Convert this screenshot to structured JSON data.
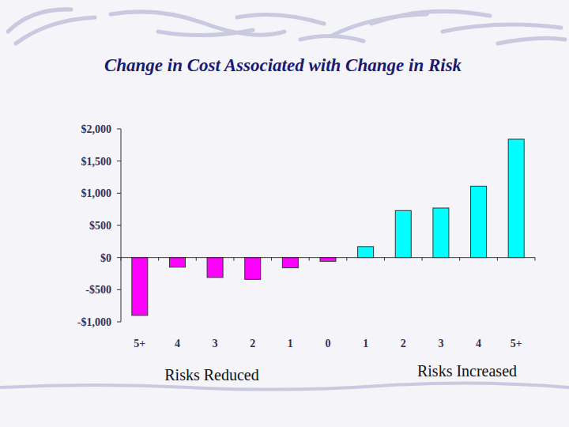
{
  "chart_data": {
    "type": "bar",
    "title": "Change in Cost Associated with Change in Risk",
    "categories": [
      "5+",
      "4",
      "3",
      "2",
      "1",
      "0",
      "1",
      "2",
      "3",
      "4",
      "5+"
    ],
    "values": [
      -900,
      -150,
      -310,
      -340,
      -160,
      -60,
      170,
      730,
      770,
      1110,
      1840
    ],
    "colors": [
      "#ff00ff",
      "#ff00ff",
      "#ff00ff",
      "#ff00ff",
      "#ff00ff",
      "#ff00ff",
      "#00ffff",
      "#00ffff",
      "#00ffff",
      "#00ffff",
      "#00ffff"
    ],
    "ylim": [
      -1000,
      2000
    ],
    "yticks": [
      {
        "value": -1000,
        "label": "-$1,000"
      },
      {
        "value": -500,
        "label": "-$500"
      },
      {
        "value": 0,
        "label": "$0"
      },
      {
        "value": 500,
        "label": "$500"
      },
      {
        "value": 1000,
        "label": "$1,000"
      },
      {
        "value": 1500,
        "label": "$1,500"
      },
      {
        "value": 2000,
        "label": "$2,000"
      }
    ],
    "grid": false,
    "annotations": [
      "Risks Reduced",
      "Risks Increased"
    ]
  }
}
